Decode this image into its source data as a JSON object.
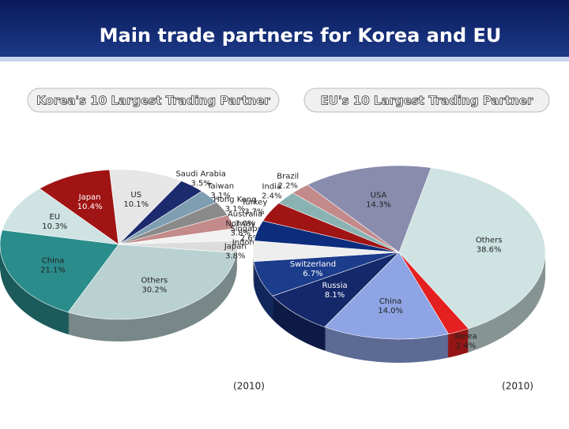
{
  "title": "Main trade partners for Korea and EU",
  "chart_data": [
    {
      "type": "pie",
      "title": "Korea's 10 Largest Trading Partner",
      "note": "(2010)",
      "categories": [
        "Japan",
        "US",
        "Saudi Arabia",
        "Taiwan",
        "Hong Kong",
        "Australia",
        "Singapore",
        "Indonesia",
        "Others",
        "China",
        "EU"
      ],
      "values": [
        10.4,
        10.1,
        3.5,
        3.1,
        3.1,
        3.0,
        2.6,
        2.6,
        30.2,
        21.1,
        10.3
      ],
      "value_labels": [
        "10.4%",
        "10.1%",
        "3.5%",
        "3.1%",
        "3.1%",
        "3.0%",
        "2.6%",
        null,
        "30.2%",
        "21.1%",
        "10.3%"
      ],
      "colors": [
        "#a01414",
        "#e6e6e6",
        "#1c2a6e",
        "#7f9eb2",
        "#8a8a8a",
        "#c48a8a",
        "#f2f2f2",
        "#dcdcdc",
        "#b9d1d1",
        "#2b8c8c",
        "#cfe3e3"
      ]
    },
    {
      "type": "pie",
      "title": "EU's 10 Largest Trading Partner",
      "note": "(2010)",
      "categories": [
        "Others",
        "Korea",
        "China",
        "Russia",
        "Switzerland",
        "Japan",
        "Norway",
        "Turkey",
        "India",
        "Brazil",
        "USA"
      ],
      "values": [
        38.6,
        2.4,
        14.0,
        8.1,
        6.7,
        3.8,
        3.8,
        3.7,
        2.4,
        2.2,
        14.3
      ],
      "value_labels": [
        "38.6%",
        "2.4%",
        "14.0%",
        "8.1%",
        "6.7%",
        "3.8%",
        "3.8%",
        "3.7%",
        "2.4%",
        "2.2%",
        "14.3%"
      ],
      "colors": [
        "#cfe3e3",
        "#e42020",
        "#8ea4e4",
        "#14286a",
        "#1c3c8c",
        "#eeeeee",
        "#0c2c7c",
        "#a01414",
        "#8ab2b2",
        "#c48a8a",
        "#8a8cae"
      ]
    }
  ]
}
